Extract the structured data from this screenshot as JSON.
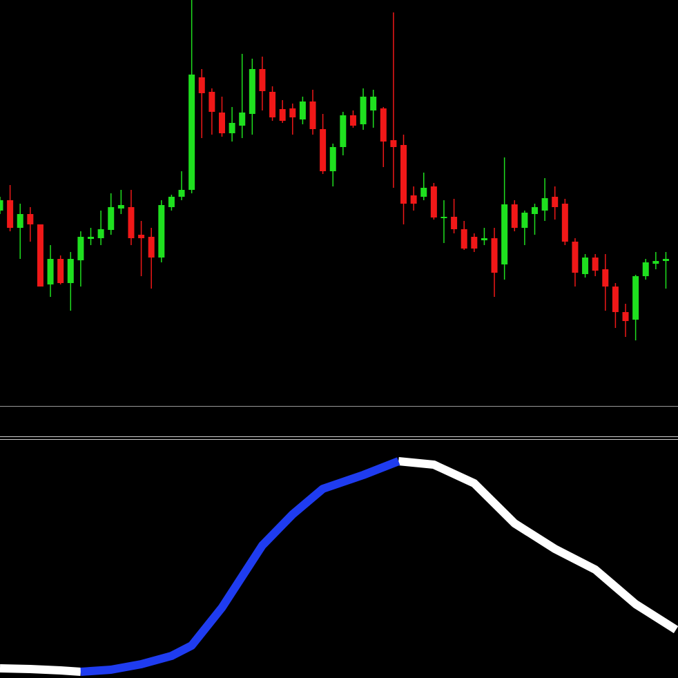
{
  "chart_data": [
    {
      "type": "candlestick",
      "up_color": "#1fe01f",
      "down_color": "#f01818",
      "xlim": [
        0,
        67.2
      ],
      "ylim": [
        0,
        585
      ],
      "open": [
        280,
        295,
        255,
        275,
        260,
        173,
        210,
        175,
        208,
        239,
        240,
        252,
        283,
        285,
        245,
        242,
        212,
        285,
        300,
        310,
        473,
        452,
        422,
        392,
        403,
        420,
        485,
        452,
        427,
        428,
        412,
        438,
        398,
        337,
        372,
        418,
        405,
        425,
        428,
        382,
        375,
        302,
        300,
        315,
        269,
        271,
        253,
        242,
        237,
        240,
        202,
        289,
        255,
        275,
        280,
        300,
        290,
        235,
        188,
        212,
        195,
        170,
        133,
        122,
        185,
        203,
        207
      ],
      "high": [
        300,
        317,
        290,
        285,
        260,
        230,
        215,
        220,
        250,
        255,
        280,
        305,
        310,
        310,
        265,
        255,
        295,
        303,
        337,
        585,
        485,
        457,
        445,
        430,
        507,
        500,
        503,
        460,
        440,
        435,
        445,
        455,
        420,
        377,
        423,
        425,
        457,
        455,
        430,
        567,
        390,
        315,
        335,
        320,
        295,
        297,
        265,
        247,
        255,
        255,
        357,
        295,
        280,
        290,
        327,
        315,
        297,
        240,
        217,
        217,
        217,
        175,
        145,
        187,
        210,
        220,
        220
      ],
      "low": [
        275,
        250,
        210,
        235,
        170,
        155,
        173,
        135,
        170,
        230,
        230,
        245,
        275,
        230,
        185,
        167,
        205,
        280,
        295,
        305,
        385,
        390,
        387,
        380,
        385,
        390,
        425,
        410,
        407,
        390,
        405,
        390,
        333,
        315,
        360,
        400,
        397,
        400,
        343,
        313,
        260,
        280,
        295,
        267,
        233,
        247,
        223,
        220,
        230,
        155,
        180,
        250,
        230,
        245,
        265,
        267,
        230,
        170,
        183,
        185,
        135,
        110,
        97,
        92,
        180,
        195,
        167
      ],
      "close": [
        295,
        255,
        275,
        260,
        170,
        210,
        175,
        210,
        242,
        242,
        253,
        285,
        288,
        240,
        240,
        212,
        288,
        300,
        310,
        477,
        450,
        423,
        392,
        407,
        422,
        485,
        453,
        415,
        410,
        415,
        438,
        398,
        337,
        372,
        418,
        403,
        445,
        445,
        380,
        372,
        290,
        290,
        313,
        270,
        271,
        253,
        225,
        225,
        240,
        190,
        289,
        255,
        277,
        285,
        298,
        285,
        235,
        190,
        212,
        193,
        170,
        133,
        120,
        185,
        205,
        207,
        210
      ]
    },
    {
      "type": "line",
      "xlim": [
        0,
        67.2
      ],
      "ylim": [
        0,
        345
      ],
      "x": [
        0,
        3,
        6,
        8,
        11,
        14,
        17,
        19,
        22,
        26,
        29,
        32,
        36,
        39.5,
        43,
        47,
        51,
        55,
        59,
        63,
        67
      ],
      "series": [
        {
          "color": "#ffffff",
          "values": [
            14,
            13,
            11,
            9,
            null,
            null,
            null,
            null,
            null,
            null,
            null,
            null,
            null,
            314,
            309,
            282,
            224,
            187,
            157,
            107,
            70
          ]
        },
        {
          "color": "#1f3cf0",
          "values": [
            null,
            null,
            null,
            9,
            12,
            20,
            32,
            47,
            102,
            192,
            237,
            274,
            294,
            314,
            null,
            null,
            null,
            null,
            null,
            null,
            null
          ]
        }
      ]
    }
  ]
}
